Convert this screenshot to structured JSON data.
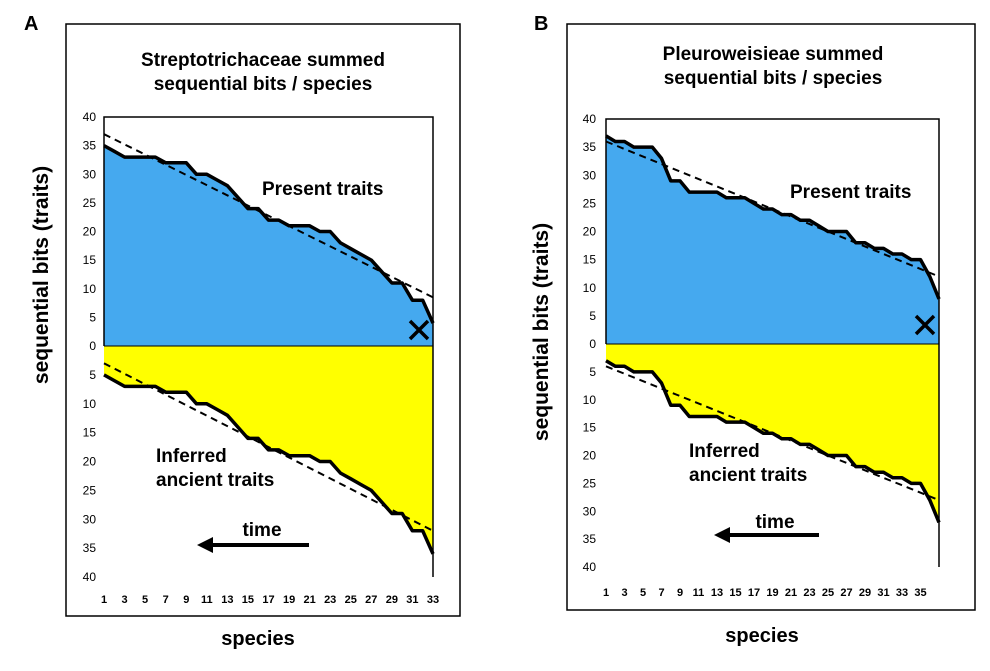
{
  "chart_data": [
    {
      "panel": "A",
      "type": "area",
      "title": [
        "Streptotrichaceae summed",
        "sequential bits / species"
      ],
      "xlabel": "species",
      "ylabel": "sequential bits (traits)",
      "x_ticks": [
        "1",
        "3",
        "5",
        "7",
        "9",
        "11",
        "13",
        "15",
        "17",
        "19",
        "21",
        "23",
        "25",
        "27",
        "29",
        "31",
        "33"
      ],
      "y_ticks_upper": [
        "40",
        "35",
        "30",
        "25",
        "20",
        "15",
        "10",
        "5",
        "0"
      ],
      "y_ticks_lower": [
        "5",
        "10",
        "15",
        "20",
        "25",
        "30",
        "35",
        "40"
      ],
      "xlim": [
        1,
        33
      ],
      "ylim_upper": [
        0,
        40
      ],
      "ylim_lower": [
        0,
        40
      ],
      "series": [
        {
          "name": "Present traits",
          "color": "#45a9ef",
          "values": [
            35,
            34,
            33,
            33,
            33,
            33,
            32,
            32,
            32,
            30,
            30,
            29,
            28,
            26,
            24,
            24,
            22,
            22,
            21,
            21,
            21,
            20,
            20,
            18,
            17,
            16,
            15,
            13,
            11,
            11,
            8,
            8,
            4
          ]
        },
        {
          "name": "Inferred ancient traits",
          "color": "#ffff00",
          "values": [
            5,
            6,
            7,
            7,
            7,
            7,
            8,
            8,
            8,
            10,
            10,
            11,
            12,
            14,
            16,
            16,
            18,
            18,
            19,
            19,
            19,
            20,
            20,
            22,
            23,
            24,
            25,
            27,
            29,
            29,
            32,
            32,
            36
          ]
        }
      ],
      "trend_upper": {
        "start": 37,
        "end": 8.5
      },
      "trend_lower": {
        "start": 3,
        "end": 32
      },
      "labels": {
        "present": "Present traits",
        "inferred": [
          "Inferred",
          "ancient traits"
        ],
        "time": "time",
        "marker": "X"
      }
    },
    {
      "panel": "B",
      "type": "area",
      "title": [
        "Pleuroweisieae summed",
        "sequential bits / species"
      ],
      "xlabel": "species",
      "ylabel": "sequential bits (traits)",
      "x_ticks": [
        "1",
        "3",
        "5",
        "7",
        "9",
        "11",
        "13",
        "15",
        "17",
        "19",
        "21",
        "23",
        "25",
        "27",
        "29",
        "31",
        "33",
        "35"
      ],
      "y_ticks_upper": [
        "40",
        "35",
        "30",
        "25",
        "20",
        "15",
        "10",
        "5",
        "0"
      ],
      "y_ticks_lower": [
        "5",
        "10",
        "15",
        "20",
        "25",
        "30",
        "35",
        "40"
      ],
      "xlim": [
        1,
        36
      ],
      "ylim_upper": [
        0,
        40
      ],
      "ylim_lower": [
        0,
        40
      ],
      "series": [
        {
          "name": "Present traits",
          "color": "#45a9ef",
          "values": [
            37,
            36,
            36,
            35,
            35,
            35,
            33,
            29,
            29,
            27,
            27,
            27,
            27,
            26,
            26,
            26,
            25,
            24,
            24,
            23,
            23,
            22,
            22,
            21,
            20,
            20,
            20,
            18,
            18,
            17,
            17,
            16,
            16,
            15,
            15,
            12,
            8
          ]
        },
        {
          "name": "Inferred ancient traits",
          "color": "#ffff00",
          "values": [
            3,
            4,
            4,
            5,
            5,
            5,
            7,
            11,
            11,
            13,
            13,
            13,
            13,
            14,
            14,
            14,
            15,
            16,
            16,
            17,
            17,
            18,
            18,
            19,
            20,
            20,
            20,
            22,
            22,
            23,
            23,
            24,
            24,
            25,
            25,
            28,
            32
          ]
        }
      ],
      "trend_upper": {
        "start": 36,
        "end": 12
      },
      "trend_lower": {
        "start": 4,
        "end": 28
      },
      "labels": {
        "present": "Present traits",
        "inferred": [
          "Inferred",
          "ancient traits"
        ],
        "time": "time",
        "marker": "X"
      }
    }
  ]
}
